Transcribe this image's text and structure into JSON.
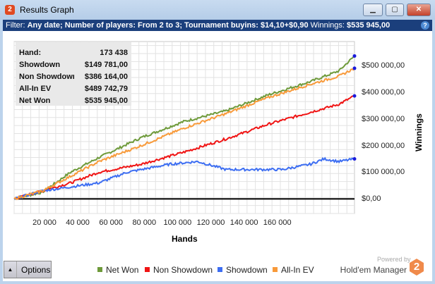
{
  "window": {
    "title": "Results Graph",
    "app_icon": "2",
    "minimize": "▁",
    "maximize": "▢",
    "close": "✕"
  },
  "filter": {
    "label": "Filter:",
    "value": "Any date; Number of players: From 2 to 3; Tournament buyins: $14,10+$0,90",
    "winnings_label": "Winnings:",
    "winnings_value": "$535 945,00",
    "help": "?"
  },
  "info": [
    {
      "k": "Hand:",
      "v": "173 438"
    },
    {
      "k": "Showdown",
      "v": "$149 781,00"
    },
    {
      "k": "Non Showdown",
      "v": "$386 164,00"
    },
    {
      "k": "All-In EV",
      "v": "$489 742,79"
    },
    {
      "k": "Net Won",
      "v": "$535 945,00"
    }
  ],
  "options_label": "Options",
  "powered_by": "Powered by",
  "brand": "Hold'em Manager",
  "brand_logo": "2",
  "chart_data": {
    "type": "line",
    "xlabel": "Hands",
    "ylabel": "Winnings",
    "xlim": [
      0,
      173438
    ],
    "ylim": [
      -55000,
      590000
    ],
    "x_ticks": [
      "20 000",
      "40 000",
      "60 000",
      "80 000",
      "100 000",
      "120 000",
      "140 000",
      "160 000"
    ],
    "y_ticks": [
      {
        "v": 0,
        "label": "$0,00"
      },
      {
        "v": 100000,
        "label": "$100 000,00"
      },
      {
        "v": 200000,
        "label": "$200 000,00"
      },
      {
        "v": 300000,
        "label": "$300 000,00"
      },
      {
        "v": 400000,
        "label": "$400 000,00"
      },
      {
        "v": 500000,
        "label": "$500 000,00"
      }
    ],
    "grid": true,
    "legend": "bottom",
    "series": [
      {
        "name": "Net Won",
        "color": "#6e9a3a",
        "points": [
          [
            0,
            0
          ],
          [
            14400,
            25000
          ],
          [
            28800,
            100000
          ],
          [
            43200,
            155000
          ],
          [
            64800,
            230000
          ],
          [
            86400,
            290000
          ],
          [
            108000,
            330000
          ],
          [
            129500,
            390000
          ],
          [
            151000,
            440000
          ],
          [
            165500,
            480000
          ],
          [
            173438,
            535945
          ]
        ]
      },
      {
        "name": "Non Showdown",
        "color": "#f01414",
        "points": [
          [
            0,
            0
          ],
          [
            28800,
            60000
          ],
          [
            43200,
            100000
          ],
          [
            64800,
            130000
          ],
          [
            86400,
            175000
          ],
          [
            108000,
            225000
          ],
          [
            129500,
            280000
          ],
          [
            151000,
            325000
          ],
          [
            165500,
            355000
          ],
          [
            173438,
            386164
          ]
        ]
      },
      {
        "name": "Showdown",
        "color": "#3d6ef2",
        "points": [
          [
            0,
            0
          ],
          [
            14400,
            30000
          ],
          [
            28800,
            45000
          ],
          [
            43200,
            60000
          ],
          [
            57600,
            100000
          ],
          [
            79200,
            130000
          ],
          [
            93500,
            140000
          ],
          [
            108000,
            110000
          ],
          [
            122000,
            110000
          ],
          [
            136700,
            110000
          ],
          [
            151000,
            130000
          ],
          [
            158000,
            150000
          ],
          [
            165500,
            140000
          ],
          [
            173438,
            149781
          ]
        ]
      },
      {
        "name": "All-In EV",
        "color": "#f89a3a",
        "points": [
          [
            0,
            0
          ],
          [
            14400,
            30000
          ],
          [
            28800,
            85000
          ],
          [
            43200,
            140000
          ],
          [
            64800,
            200000
          ],
          [
            86400,
            265000
          ],
          [
            108000,
            320000
          ],
          [
            129500,
            380000
          ],
          [
            151000,
            430000
          ],
          [
            165500,
            460000
          ],
          [
            173438,
            489743
          ]
        ]
      }
    ]
  }
}
